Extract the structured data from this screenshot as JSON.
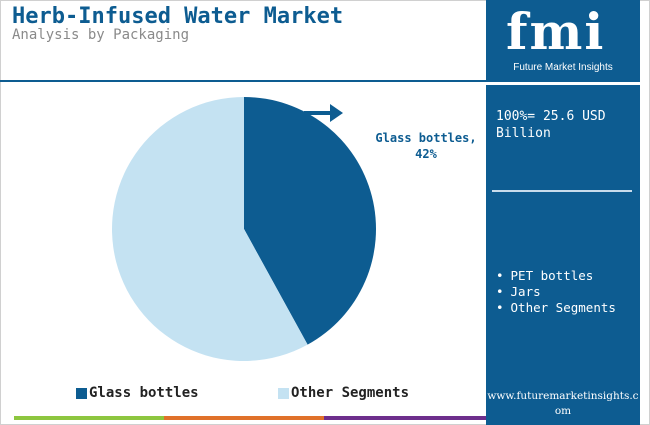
{
  "header": {
    "title": "Herb-Infused Water Market",
    "subtitle": "Analysis by Packaging"
  },
  "chart_data": {
    "type": "pie",
    "title": "",
    "slices": [
      {
        "label": "Glass bottles",
        "value": 42,
        "color": "#0d5c91"
      },
      {
        "label": "Other Segments",
        "value": 58,
        "color": "#c4e2f2"
      }
    ],
    "data_labels": [
      {
        "text": "Glass bottles, 42%",
        "series": "Glass bottles"
      }
    ],
    "legend": {
      "placement": "bottom",
      "items": [
        "Glass bottles",
        "Other Segments"
      ]
    }
  },
  "legend_labels": {
    "glass": "Glass bottles",
    "other": "Other Segments"
  },
  "slice_label": "Glass bottles, 42%",
  "sidebar": {
    "logo_text": "fmi",
    "logo_subtitle": "Future Market Insights",
    "total_text": "100%= 25.6 USD Billion",
    "other_segments": [
      "PET bottles",
      "Jars",
      "Other Segments"
    ],
    "website": "www.futuremarketinsights.com"
  },
  "colors": {
    "primary": "#0d5c91",
    "light": "#c4e2f2",
    "bar_green": "#8dc63f",
    "bar_orange": "#e0712a",
    "bar_purple": "#6d2e8c"
  }
}
